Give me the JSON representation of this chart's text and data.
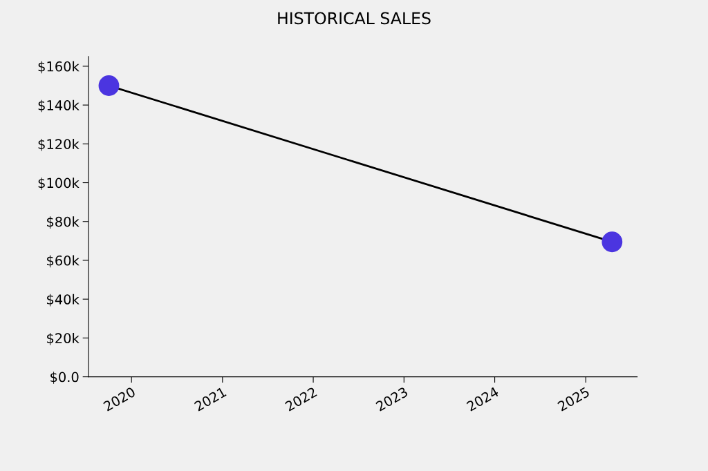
{
  "chart_data": {
    "type": "line",
    "title": "HISTORICAL SALES",
    "x": [
      "2019-10-02",
      "2025-04-17"
    ],
    "series": [
      {
        "color": "#000000",
        "colors": [
          "#4b35e0",
          "#4b35e0"
        ],
        "marker": "circle",
        "values": [
          150000,
          69500
        ]
      }
    ],
    "xlim": [
      "2019-07-12",
      "2025-07-27"
    ],
    "xticks": [
      "2020",
      "2021",
      "2022",
      "2023",
      "2024",
      "2025"
    ],
    "ylim": [
      0,
      165000
    ],
    "yticks": [
      {
        "value": 0,
        "label": "$0.0"
      },
      {
        "value": 20000,
        "label": "$20k"
      },
      {
        "value": 40000,
        "label": "$40k"
      },
      {
        "value": 60000,
        "label": "$60k"
      },
      {
        "value": 80000,
        "label": "$80k"
      },
      {
        "value": 100000,
        "label": "$100k"
      },
      {
        "value": 120000,
        "label": "$120k"
      },
      {
        "value": 140000,
        "label": "$140k"
      },
      {
        "value": 160000,
        "label": "$160k"
      }
    ],
    "grid": false,
    "line_style": "solid"
  }
}
